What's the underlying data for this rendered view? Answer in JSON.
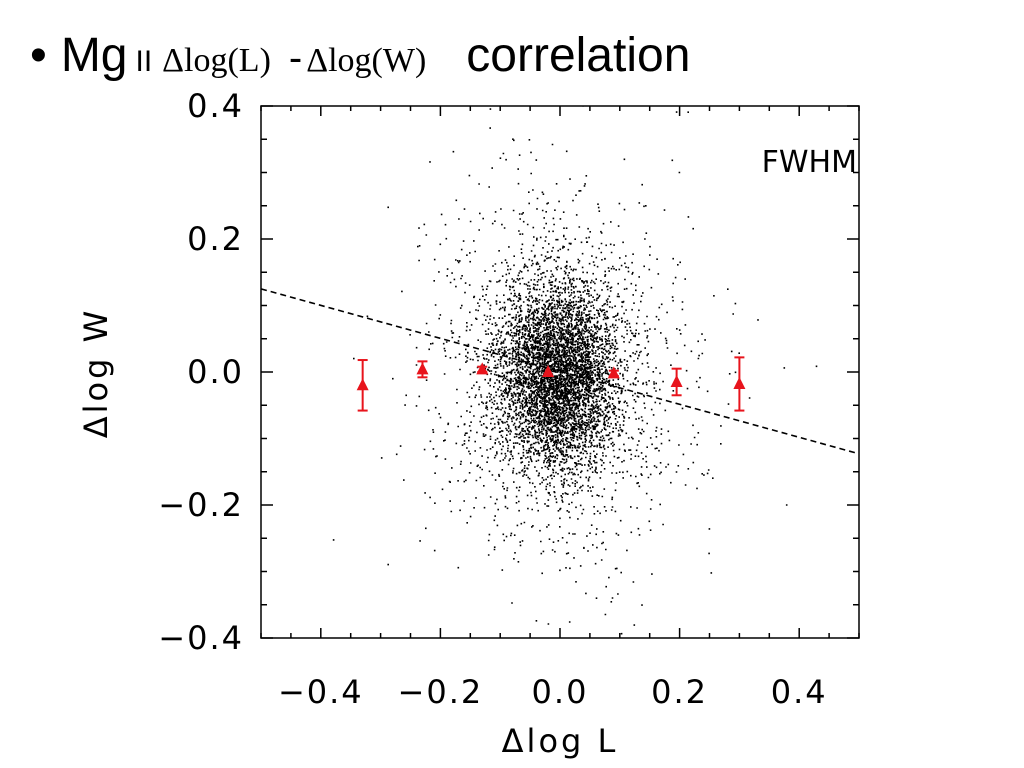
{
  "title": {
    "bullet": "•",
    "species": "Mg",
    "ion": "II",
    "term_a": "Δlog(L)",
    "separator": "-",
    "term_b": "Δlog(W)",
    "suffix": "correlation"
  },
  "colors": {
    "points": "#000000",
    "binned": "#e8141c",
    "fit_line": "#000000"
  },
  "chart_data": {
    "type": "scatter",
    "xlabel": "Δlog L",
    "ylabel": "Δlog W",
    "annotation": "FWHM",
    "xlim": [
      -0.5,
      0.5
    ],
    "ylim": [
      -0.4,
      0.4
    ],
    "xticks": [
      -0.4,
      -0.2,
      0.0,
      0.2,
      0.4
    ],
    "xtick_labels": [
      "−0.4",
      "−0.2",
      "0.0",
      "0.2",
      "0.4"
    ],
    "yticks": [
      -0.4,
      -0.2,
      0.0,
      0.2,
      0.4
    ],
    "ytick_labels": [
      "−0.4",
      "−0.2",
      "0.0",
      "0.2",
      "0.4"
    ],
    "grid": false,
    "scatter": {
      "n_points": 6500,
      "center": [
        -0.005,
        -0.005
      ],
      "core_sd": [
        0.05,
        0.07
      ],
      "halo_sd": [
        0.11,
        0.14
      ],
      "halo_fraction": 0.25
    },
    "binned_points": [
      {
        "x": -0.33,
        "y": -0.02,
        "err": 0.038
      },
      {
        "x": -0.23,
        "y": 0.004,
        "err": 0.012
      },
      {
        "x": -0.13,
        "y": 0.004,
        "err": 0.004
      },
      {
        "x": -0.02,
        "y": 0.0,
        "err": 0.002
      },
      {
        "x": 0.09,
        "y": -0.002,
        "err": 0.004
      },
      {
        "x": 0.195,
        "y": -0.015,
        "err": 0.02
      },
      {
        "x": 0.3,
        "y": -0.018,
        "err": 0.04
      }
    ],
    "fit_line": {
      "x": [
        -0.5,
        0.5
      ],
      "y": [
        0.125,
        -0.123
      ],
      "style": "dashed"
    }
  }
}
